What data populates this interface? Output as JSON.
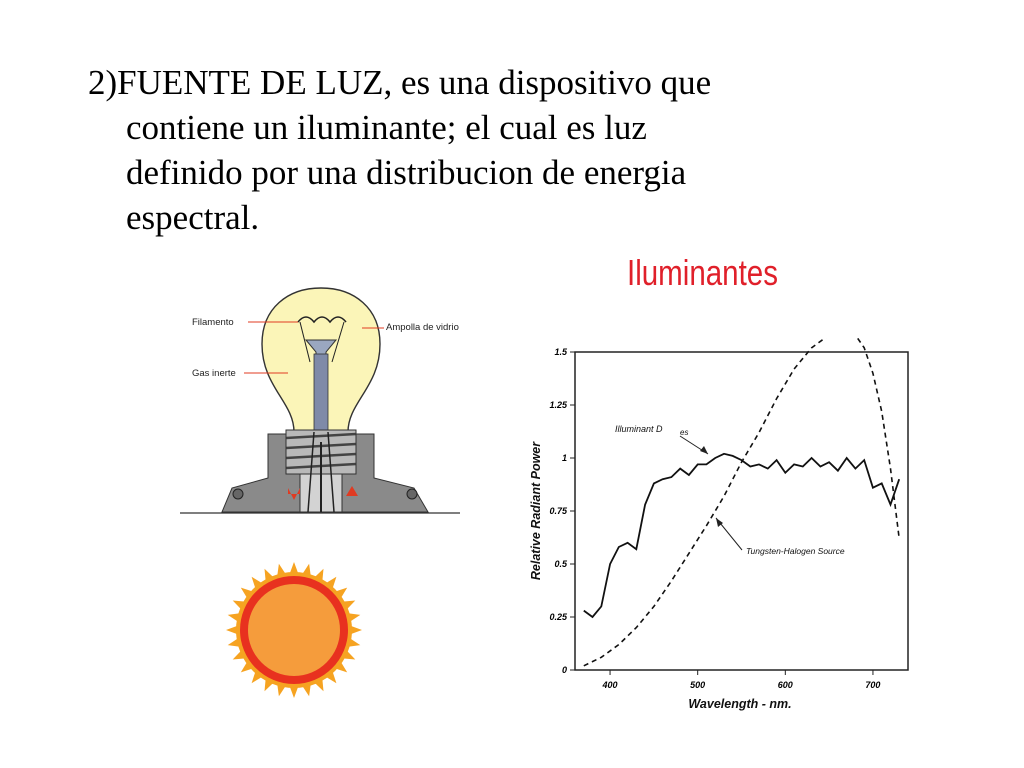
{
  "slide": {
    "text_lines": [
      "2)FUENTE DE LUZ, es una dispositivo que",
      "contiene un iluminante; el cual es luz",
      "definido por una distribucion de energia",
      "espectral."
    ],
    "chart_heading": "Iluminantes"
  },
  "bulb_diagram": {
    "label_filament": "Filamento",
    "label_gas": "Gas inerte",
    "label_glass": "Ampolla de vidrio"
  },
  "colors": {
    "heading_red": "#e0202a",
    "bulb_yellow": "#fbf5b8",
    "sun_outer": "#f6a321",
    "sun_ring": "#e8311f",
    "sun_core": "#f59c3c",
    "base_gray": "#8a8a8a"
  },
  "chart_data": {
    "type": "line",
    "title": "",
    "xlabel": "Wavelength - nm.",
    "ylabel": "Relative Radiant Power",
    "xlim": [
      360,
      740
    ],
    "ylim": [
      0,
      1.5
    ],
    "xticks": [
      400,
      500,
      600,
      700
    ],
    "yticks": [
      0,
      0.25,
      0.5,
      0.75,
      1,
      1.25,
      1.5
    ],
    "ytick_labels": [
      "0",
      "0.25",
      "0.5",
      "0.75",
      "1",
      "1.25",
      "1.5"
    ],
    "grid": false,
    "series": [
      {
        "name": "Illuminant D65",
        "style": "solid",
        "x": [
          370,
          380,
          390,
          400,
          410,
          420,
          430,
          440,
          450,
          460,
          470,
          480,
          490,
          500,
          510,
          520,
          530,
          540,
          550,
          560,
          570,
          580,
          590,
          600,
          610,
          620,
          630,
          640,
          650,
          660,
          670,
          680,
          690,
          700,
          710,
          720,
          730
        ],
        "y": [
          0.28,
          0.25,
          0.3,
          0.5,
          0.58,
          0.6,
          0.57,
          0.78,
          0.88,
          0.9,
          0.91,
          0.95,
          0.92,
          0.97,
          0.97,
          1.0,
          1.02,
          1.01,
          0.99,
          0.96,
          0.97,
          0.95,
          0.99,
          0.93,
          0.97,
          0.96,
          1.0,
          0.96,
          0.98,
          0.94,
          1.0,
          0.95,
          0.99,
          0.86,
          0.88,
          0.78,
          0.9
        ]
      },
      {
        "name": "Tungsten-Halogen Source",
        "style": "dashed",
        "x": [
          370,
          390,
          410,
          430,
          450,
          470,
          490,
          510,
          530,
          550,
          570,
          590,
          610,
          630,
          650,
          670,
          680,
          690,
          700,
          710,
          720,
          730
        ],
        "y": [
          0.02,
          0.06,
          0.12,
          0.2,
          0.3,
          0.42,
          0.55,
          0.68,
          0.82,
          0.98,
          1.12,
          1.28,
          1.42,
          1.52,
          1.58,
          1.6,
          1.58,
          1.52,
          1.4,
          1.22,
          0.95,
          0.62
        ]
      }
    ],
    "annotations": [
      {
        "text": "Illuminant D",
        "x": 420,
        "y": 1.15
      },
      {
        "text": "es",
        "x": 485,
        "y": 1.12
      },
      {
        "text": "Tungsten-Halogen Source",
        "x": 540,
        "y": 0.55
      }
    ]
  }
}
